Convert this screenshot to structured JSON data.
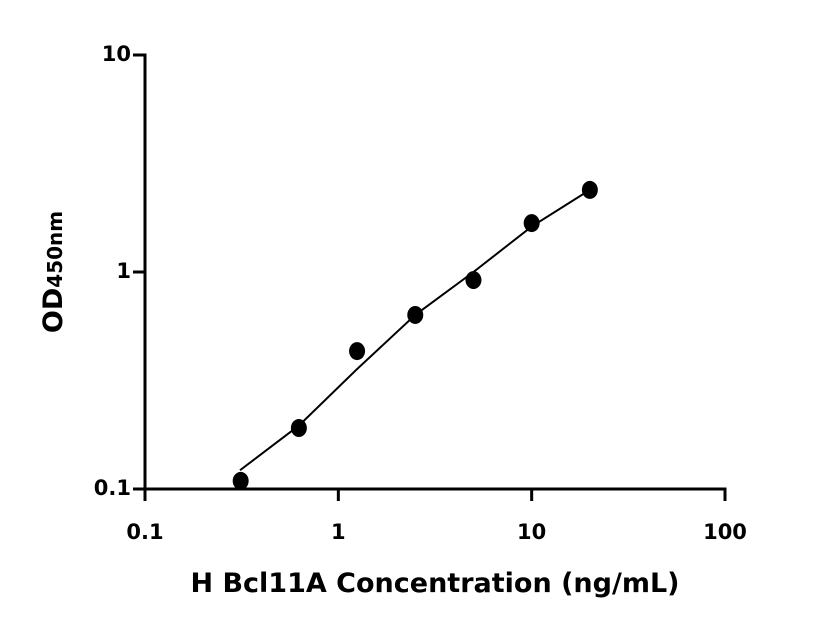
{
  "chart_data": {
    "type": "scatter",
    "xlabel": "H Bcl11A Concentration (ng/mL)",
    "ylabel": "OD",
    "ylabel_sub": "450nm",
    "xscale": "log",
    "yscale": "log",
    "xlim": [
      0.1,
      100
    ],
    "xticks": [
      0.1,
      1,
      10,
      100
    ],
    "ylim": [
      0.1,
      10
    ],
    "yticks": [
      0.1,
      1,
      10
    ],
    "color": "#000000",
    "x": [
      0.3125,
      0.625,
      1.25,
      2.5,
      5,
      10,
      20
    ],
    "values": [
      0.109,
      0.191,
      0.432,
      0.634,
      0.918,
      1.68,
      2.39
    ],
    "fit": {
      "x": [
        0.31,
        0.625,
        1.25,
        2.5,
        5,
        10,
        20
      ],
      "values": [
        0.122,
        0.196,
        0.357,
        0.634,
        1.0,
        1.62,
        2.39
      ]
    }
  }
}
